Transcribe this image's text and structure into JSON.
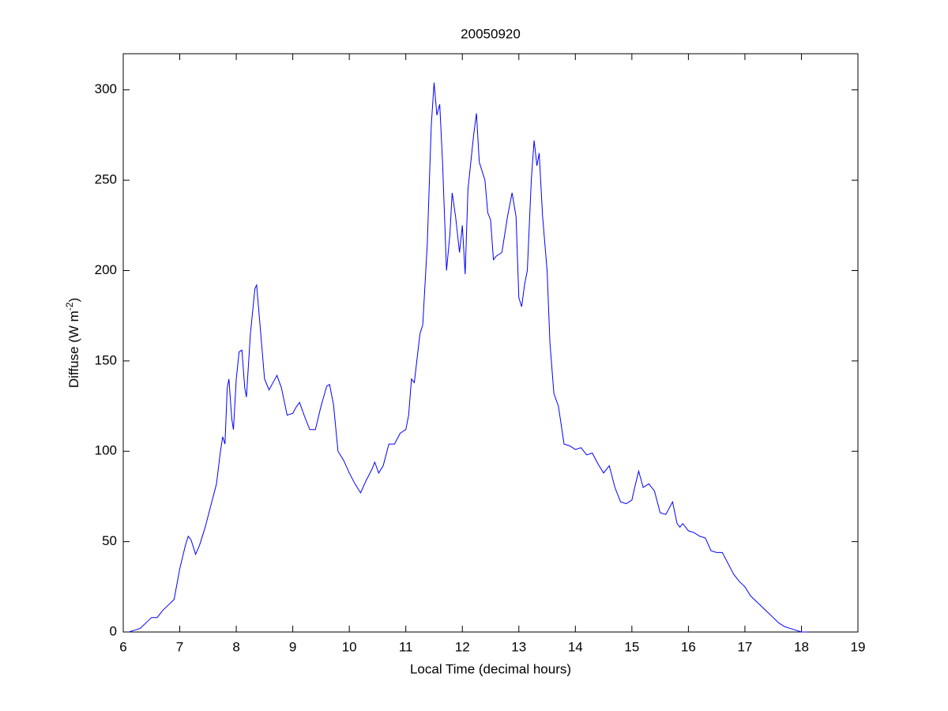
{
  "chart_data": {
    "type": "line",
    "title": "20050920",
    "xlabel": "Local Time (decimal hours)",
    "ylabel_parts": [
      "Diffuse (W m",
      "-2",
      ")"
    ],
    "xlim": [
      6,
      19
    ],
    "xticks": [
      6,
      7,
      8,
      9,
      10,
      11,
      12,
      13,
      14,
      15,
      16,
      17,
      18,
      19
    ],
    "ylim": [
      0,
      320
    ],
    "yticks": [
      0,
      50,
      100,
      150,
      200,
      250,
      300
    ],
    "grid": false,
    "series": [
      {
        "color": "#0000ff",
        "x": [
          6.1,
          6.2,
          6.3,
          6.4,
          6.5,
          6.6,
          6.7,
          6.8,
          6.9,
          7.0,
          7.1,
          7.15,
          7.2,
          7.28,
          7.35,
          7.45,
          7.55,
          7.65,
          7.72,
          7.76,
          7.8,
          7.84,
          7.87,
          7.92,
          7.95,
          8.0,
          8.05,
          8.1,
          8.15,
          8.18,
          8.25,
          8.33,
          8.36,
          8.42,
          8.5,
          8.58,
          8.65,
          8.72,
          8.8,
          8.9,
          9.0,
          9.05,
          9.12,
          9.2,
          9.3,
          9.4,
          9.5,
          9.6,
          9.65,
          9.72,
          9.8,
          9.9,
          10.0,
          10.1,
          10.2,
          10.3,
          10.4,
          10.45,
          10.52,
          10.6,
          10.7,
          10.8,
          10.9,
          11.0,
          11.05,
          11.1,
          11.15,
          11.25,
          11.3,
          11.38,
          11.45,
          11.5,
          11.55,
          11.6,
          11.65,
          11.72,
          11.78,
          11.82,
          11.88,
          11.95,
          12.0,
          12.05,
          12.1,
          12.2,
          12.25,
          12.3,
          12.4,
          12.45,
          12.5,
          12.55,
          12.6,
          12.7,
          12.8,
          12.88,
          12.95,
          13.0,
          13.05,
          13.1,
          13.15,
          13.22,
          13.27,
          13.32,
          13.36,
          13.42,
          13.5,
          13.55,
          13.62,
          13.7,
          13.8,
          13.9,
          14.0,
          14.1,
          14.2,
          14.3,
          14.4,
          14.5,
          14.6,
          14.7,
          14.8,
          14.9,
          15.0,
          15.05,
          15.12,
          15.2,
          15.3,
          15.4,
          15.5,
          15.6,
          15.72,
          15.8,
          15.85,
          15.9,
          16.0,
          16.1,
          16.2,
          16.3,
          16.4,
          16.5,
          16.6,
          16.7,
          16.8,
          16.9,
          17.0,
          17.1,
          17.2,
          17.3,
          17.4,
          17.5,
          17.6,
          17.7,
          17.8,
          17.9,
          18.0,
          18.1
        ],
        "values": [
          0,
          1,
          2,
          5,
          8,
          8,
          12,
          15,
          18,
          35,
          48,
          53,
          51,
          43,
          48,
          58,
          70,
          82,
          100,
          108,
          104,
          135,
          140,
          118,
          112,
          140,
          155,
          156,
          135,
          130,
          165,
          190,
          192,
          170,
          140,
          134,
          138,
          142,
          135,
          120,
          121,
          124,
          127,
          120,
          112,
          112,
          125,
          136,
          137,
          126,
          100,
          95,
          88,
          82,
          77,
          84,
          90,
          94,
          88,
          92,
          104,
          104,
          110,
          112,
          120,
          140,
          138,
          165,
          170,
          215,
          280,
          304,
          286,
          292,
          260,
          200,
          220,
          243,
          230,
          210,
          225,
          198,
          245,
          275,
          287,
          260,
          250,
          232,
          228,
          206,
          208,
          210,
          230,
          243,
          230,
          185,
          180,
          192,
          200,
          250,
          272,
          258,
          265,
          230,
          200,
          160,
          132,
          125,
          104,
          103,
          101,
          102,
          98,
          99,
          93,
          88,
          92,
          80,
          72,
          71,
          73,
          80,
          89,
          80,
          82,
          78,
          66,
          65,
          72,
          60,
          58,
          60,
          56,
          55,
          53,
          52,
          45,
          44,
          44,
          38,
          32,
          28,
          25,
          20,
          17,
          14,
          11,
          8,
          5,
          3,
          2,
          1,
          0,
          0
        ]
      }
    ]
  }
}
